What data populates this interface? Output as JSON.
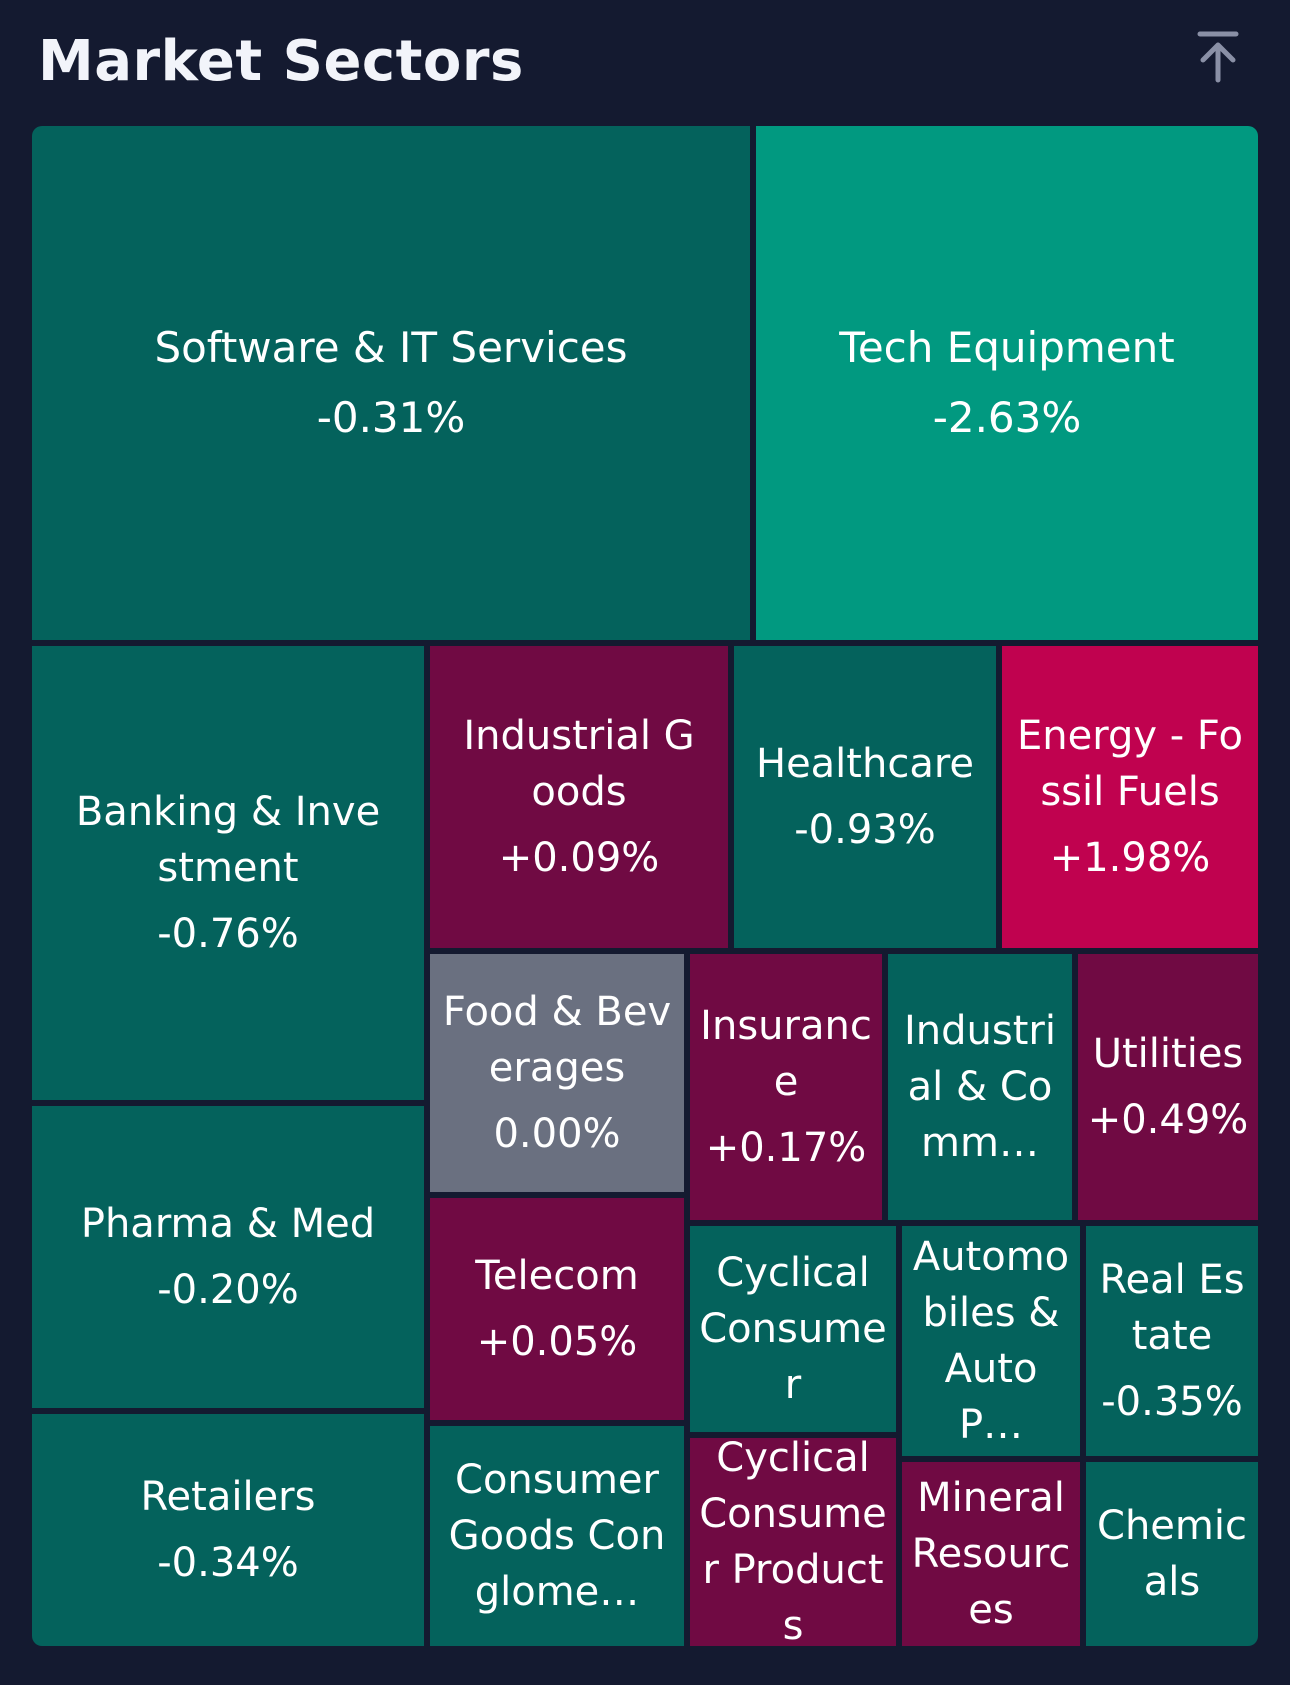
{
  "header": {
    "title": "Market Sectors"
  },
  "colors": {
    "background": "#141a30",
    "dark_green": "#04625c",
    "bright_green": "#019980",
    "dark_magenta": "#700a43",
    "bright_magenta": "#c0024f",
    "neutral_grey": "#6a7080"
  },
  "icons": {
    "scroll_top": "arrow-up-to-line-icon"
  },
  "sectors": [
    {
      "id": "software",
      "name": "Software & IT Services",
      "change": "-0.31%",
      "change_value": -0.31,
      "color": "#04625c"
    },
    {
      "id": "tech-equipment",
      "name": "Tech Equipment",
      "change": "-2.63%",
      "change_value": -2.63,
      "color": "#019980"
    },
    {
      "id": "banking",
      "name": "Banking & Investment",
      "change": "-0.76%",
      "change_value": -0.76,
      "color": "#04625c"
    },
    {
      "id": "industrial-goods",
      "name": "Industrial Goods",
      "change": "+0.09%",
      "change_value": 0.09,
      "color": "#700a43"
    },
    {
      "id": "healthcare",
      "name": "Healthcare",
      "change": "-0.93%",
      "change_value": -0.93,
      "color": "#04625c"
    },
    {
      "id": "energy",
      "name": "Energy - Fossil Fuels",
      "change": "+1.98%",
      "change_value": 1.98,
      "color": "#c0024f"
    },
    {
      "id": "food",
      "name": "Food & Beverages",
      "change": "0.00%",
      "change_value": 0.0,
      "color": "#6a7080"
    },
    {
      "id": "insurance",
      "name": "Insurance",
      "change": "+0.17%",
      "change_value": 0.17,
      "color": "#700a43"
    },
    {
      "id": "industrial-comm",
      "name": "Industrial & Comm…",
      "change": "",
      "color": "#04625c"
    },
    {
      "id": "utilities",
      "name": "Utilities",
      "change": "+0.49%",
      "change_value": 0.49,
      "color": "#700a43"
    },
    {
      "id": "pharma",
      "name": "Pharma & Med",
      "change": "-0.20%",
      "change_value": -0.2,
      "color": "#04625c"
    },
    {
      "id": "telecom",
      "name": "Telecom",
      "change": "+0.05%",
      "change_value": 0.05,
      "color": "#700a43"
    },
    {
      "id": "cyclical-consumer",
      "name": "Cyclical Consumer",
      "change": "",
      "color": "#04625c"
    },
    {
      "id": "automobiles",
      "name": "Automobiles & Auto P…",
      "change": "",
      "color": "#04625c"
    },
    {
      "id": "real-estate",
      "name": "Real Estate",
      "change": "-0.35%",
      "change_value": -0.35,
      "color": "#04625c"
    },
    {
      "id": "retailers",
      "name": "Retailers",
      "change": "-0.34%",
      "change_value": -0.34,
      "color": "#04625c"
    },
    {
      "id": "consumer-goods",
      "name": "Consumer Goods Conglome…",
      "change": "",
      "color": "#04625c"
    },
    {
      "id": "cyclical-products",
      "name": "Cyclical Consumer Products",
      "change": "",
      "color": "#700a43"
    },
    {
      "id": "mineral",
      "name": "Mineral Resources",
      "change": "",
      "color": "#700a43"
    },
    {
      "id": "chemicals",
      "name": "Chemicals",
      "change": "",
      "color": "#04625c"
    }
  ]
}
